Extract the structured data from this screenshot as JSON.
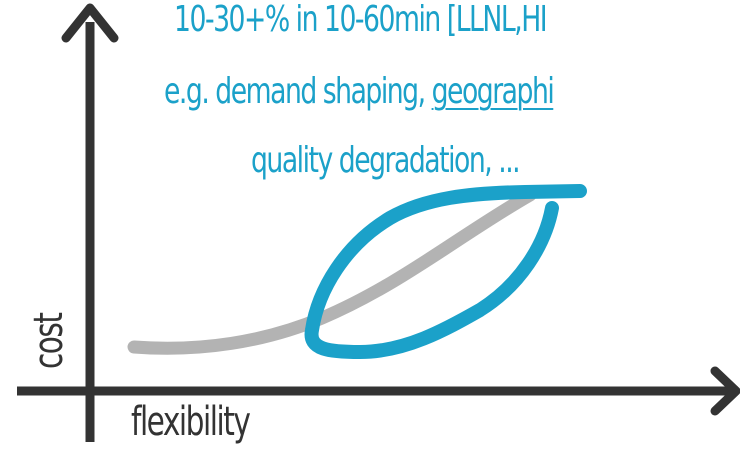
{
  "colors": {
    "accent": "#1ba1c9",
    "axis": "#333333",
    "baseline_curve": "#b3b3b3",
    "background": "#ffffff"
  },
  "caption": {
    "line1": "10-30+% in 10-60min [LLNL,HI",
    "line2_prefix": "e.g. demand shaping, ",
    "line2_link": "geographi",
    "line3": "quality degradation, ..."
  },
  "axes": {
    "x_label": "flexibility",
    "y_label": "cost"
  }
}
